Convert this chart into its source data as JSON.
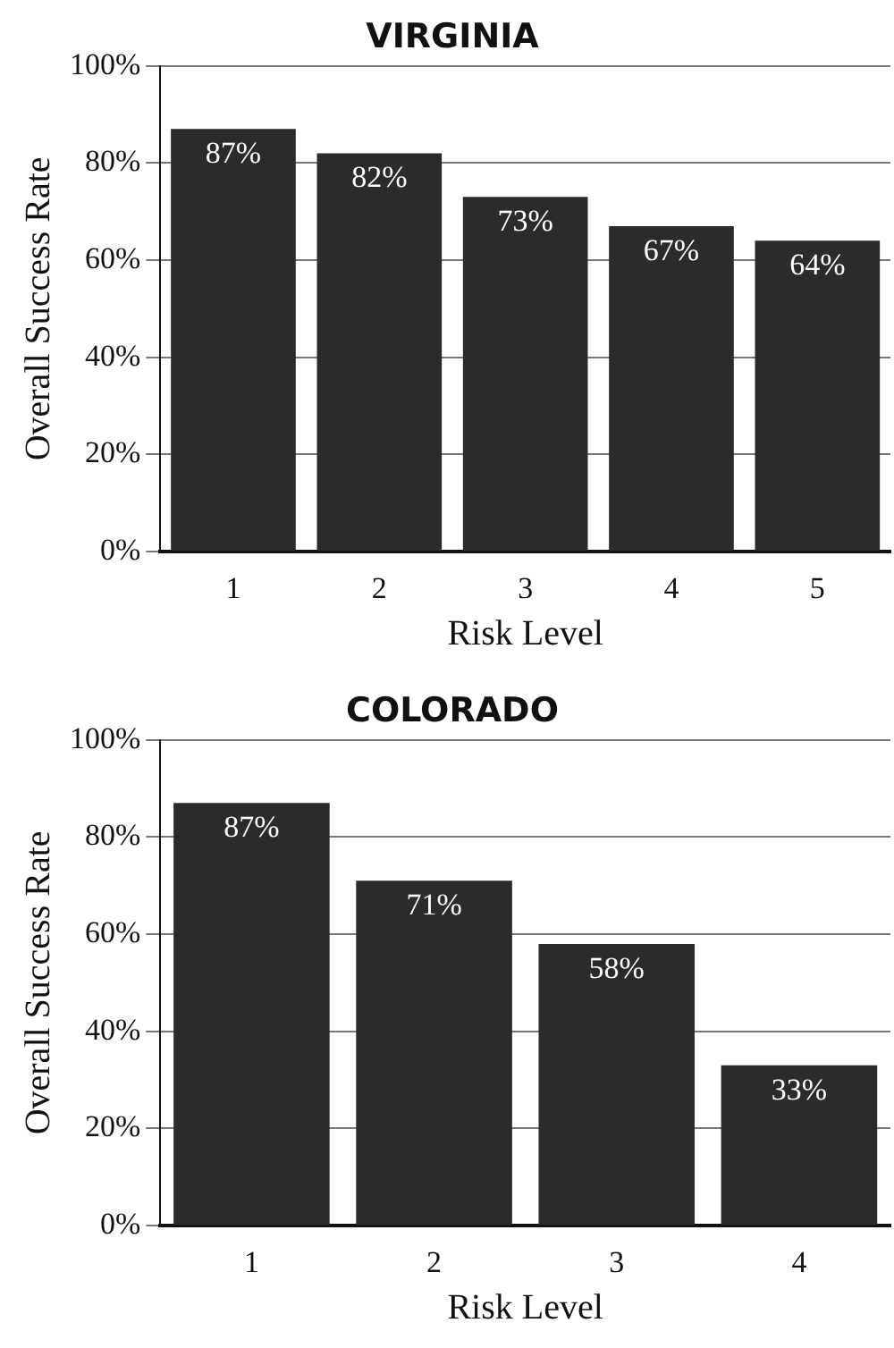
{
  "chart_data": [
    {
      "type": "bar",
      "title": "VIRGINIA",
      "xlabel": "Risk Level",
      "ylabel": "Overall Success Rate",
      "categories": [
        "1",
        "2",
        "3",
        "4",
        "5"
      ],
      "values": [
        87,
        82,
        73,
        67,
        64
      ],
      "value_labels": [
        "87%",
        "82%",
        "73%",
        "67%",
        "64%"
      ],
      "color": "#2b2b2b",
      "ylim": [
        0,
        100
      ],
      "yticks": [
        {
          "value": 0,
          "label": "0%"
        },
        {
          "value": 20,
          "label": "20%"
        },
        {
          "value": 40,
          "label": "40%"
        },
        {
          "value": 60,
          "label": "60%"
        },
        {
          "value": 80,
          "label": "80%"
        },
        {
          "value": 100,
          "label": "100%"
        }
      ],
      "grid": "y"
    },
    {
      "type": "bar",
      "title": "COLORADO",
      "xlabel": "Risk Level",
      "ylabel": "Overall Success Rate",
      "categories": [
        "1",
        "2",
        "3",
        "4"
      ],
      "values": [
        87,
        71,
        58,
        33
      ],
      "value_labels": [
        "87%",
        "71%",
        "58%",
        "33%"
      ],
      "color": "#2b2b2b",
      "ylim": [
        0,
        100
      ],
      "yticks": [
        {
          "value": 0,
          "label": "0%"
        },
        {
          "value": 20,
          "label": "20%"
        },
        {
          "value": 40,
          "label": "40%"
        },
        {
          "value": 60,
          "label": "60%"
        },
        {
          "value": 80,
          "label": "80%"
        },
        {
          "value": 100,
          "label": "100%"
        }
      ],
      "grid": "y"
    }
  ]
}
